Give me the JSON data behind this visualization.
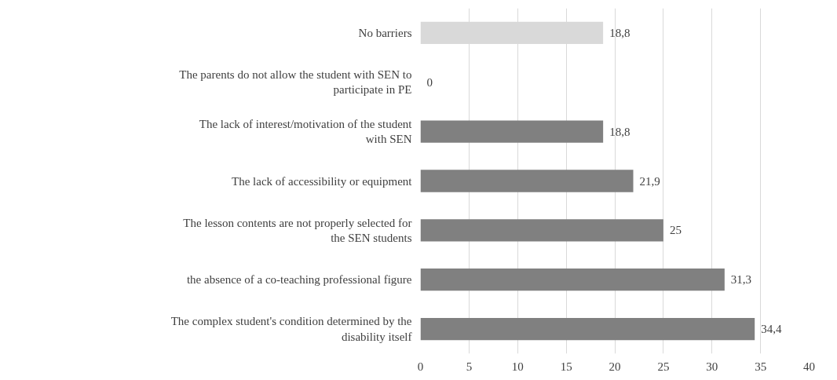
{
  "chart_data": {
    "type": "bar",
    "orientation": "horizontal",
    "categories": [
      "No barriers",
      "The parents do not allow the student with SEN to participate in PE",
      "The lack of interest/motivation of the student with SEN",
      "The lack of accessibility or equipment",
      "The lesson contents are not properly selected for the SEN students",
      "the absence of a co-teaching professional figure",
      "The complex student's condition determined by the disability itself"
    ],
    "values": [
      18.8,
      0,
      18.8,
      21.9,
      25,
      31.3,
      34.4
    ],
    "value_labels": [
      "18,8",
      "0",
      "18,8",
      "21,9",
      "25",
      "31,3",
      "34,4"
    ],
    "colors": [
      "#d9d9d9",
      "#808080",
      "#808080",
      "#808080",
      "#808080",
      "#808080",
      "#808080"
    ],
    "xlim": [
      0,
      40
    ],
    "xticks": [
      0,
      5,
      10,
      15,
      20,
      25,
      30,
      35,
      40
    ],
    "grid": "x"
  }
}
